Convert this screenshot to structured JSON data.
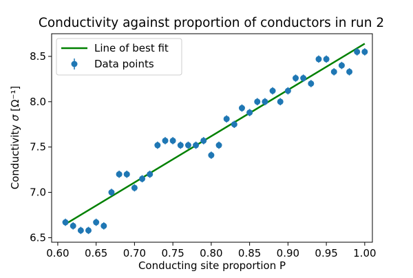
{
  "chart_data": {
    "type": "scatter",
    "title": "Conductivity against proportion of conductors in run 2",
    "xlabel": "Conducting site proportion P",
    "ylabel_main": "Conductivity",
    "ylabel_symbol": "σ",
    "ylabel_unit": "[Ω⁻¹]",
    "xlim": [
      0.592,
      1.01
    ],
    "ylim": [
      6.45,
      8.75
    ],
    "x_ticks": [
      0.6,
      0.65,
      0.7,
      0.75,
      0.8,
      0.85,
      0.9,
      0.95,
      1.0
    ],
    "x_tick_labels": [
      "0.60",
      "0.65",
      "0.70",
      "0.75",
      "0.80",
      "0.85",
      "0.90",
      "0.95",
      "1.00"
    ],
    "y_ticks": [
      6.5,
      7.0,
      7.5,
      8.0,
      8.5
    ],
    "y_tick_labels": [
      "6.5",
      "7.0",
      "7.5",
      "8.0",
      "8.5"
    ],
    "legend_position": "top-left",
    "legend": [
      {
        "label": "Line of best fit",
        "kind": "line",
        "color": "#008000"
      },
      {
        "label": "Data points",
        "kind": "errorbar-marker",
        "color": "#1f77b4"
      }
    ],
    "series": [
      {
        "name": "Data points",
        "kind": "errorbar",
        "color": "#1f77b4",
        "error": 0.04,
        "x": [
          0.61,
          0.62,
          0.63,
          0.64,
          0.65,
          0.66,
          0.67,
          0.68,
          0.69,
          0.7,
          0.71,
          0.72,
          0.73,
          0.74,
          0.75,
          0.76,
          0.77,
          0.78,
          0.79,
          0.8,
          0.81,
          0.82,
          0.83,
          0.84,
          0.85,
          0.86,
          0.87,
          0.88,
          0.89,
          0.9,
          0.91,
          0.92,
          0.93,
          0.94,
          0.95,
          0.96,
          0.97,
          0.98,
          0.99,
          1.0
        ],
        "y": [
          6.67,
          6.63,
          6.58,
          6.58,
          6.67,
          6.63,
          7.0,
          7.2,
          7.2,
          7.05,
          7.15,
          7.2,
          7.52,
          7.57,
          7.57,
          7.52,
          7.52,
          7.52,
          7.57,
          7.41,
          7.52,
          7.81,
          7.75,
          7.93,
          7.88,
          8.0,
          8.0,
          8.12,
          8.0,
          8.12,
          8.26,
          8.26,
          8.2,
          8.47,
          8.47,
          8.33,
          8.4,
          8.33,
          8.55,
          8.55
        ]
      },
      {
        "name": "Line of best fit",
        "kind": "line",
        "color": "#008000",
        "x": [
          0.61,
          1.0
        ],
        "y": [
          6.65,
          8.64
        ]
      }
    ]
  }
}
